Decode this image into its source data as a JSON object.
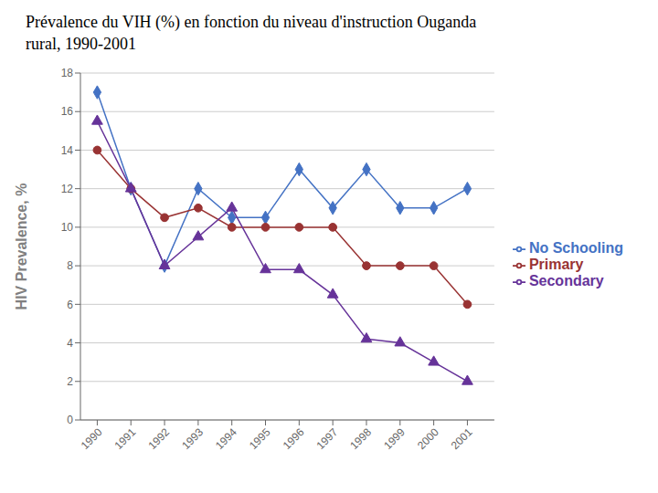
{
  "chart_data": {
    "type": "line",
    "title": "Prévalence du VIH (%) en fonction du niveau d'instruction Ouganda",
    "subtitle": "rural, 1990-2001",
    "y_label": "HIV Prevalence, %",
    "x": [
      1990,
      1991,
      1992,
      1993,
      1994,
      1995,
      1996,
      1997,
      1998,
      1999,
      2000,
      2001
    ],
    "series": [
      {
        "name": "No Schooling",
        "color": "#4472C4",
        "marker": "diamond",
        "values": [
          17,
          12,
          8,
          12,
          10.5,
          10.5,
          13,
          11,
          13,
          11,
          11,
          12
        ]
      },
      {
        "name": "Primary",
        "color": "#993333",
        "marker": "circle",
        "values": [
          14,
          12,
          10.5,
          11,
          10,
          10,
          10,
          10,
          8,
          8,
          8,
          6
        ]
      },
      {
        "name": "Secondary",
        "color": "#663399",
        "marker": "triangle",
        "values": [
          15.5,
          12,
          8,
          9.5,
          11,
          7.8,
          7.8,
          6.5,
          4.2,
          4,
          3,
          2
        ]
      }
    ],
    "xlim": [
      1989.5,
      2001.8
    ],
    "xticks": [
      1990,
      1991,
      1992,
      1993,
      1994,
      1995,
      1996,
      1997,
      1998,
      1999,
      2000,
      2001
    ],
    "ylim": [
      0,
      18
    ],
    "yticks": [
      0,
      2,
      4,
      6,
      8,
      10,
      12,
      14,
      16,
      18
    ],
    "grid": true,
    "legend": "right"
  }
}
